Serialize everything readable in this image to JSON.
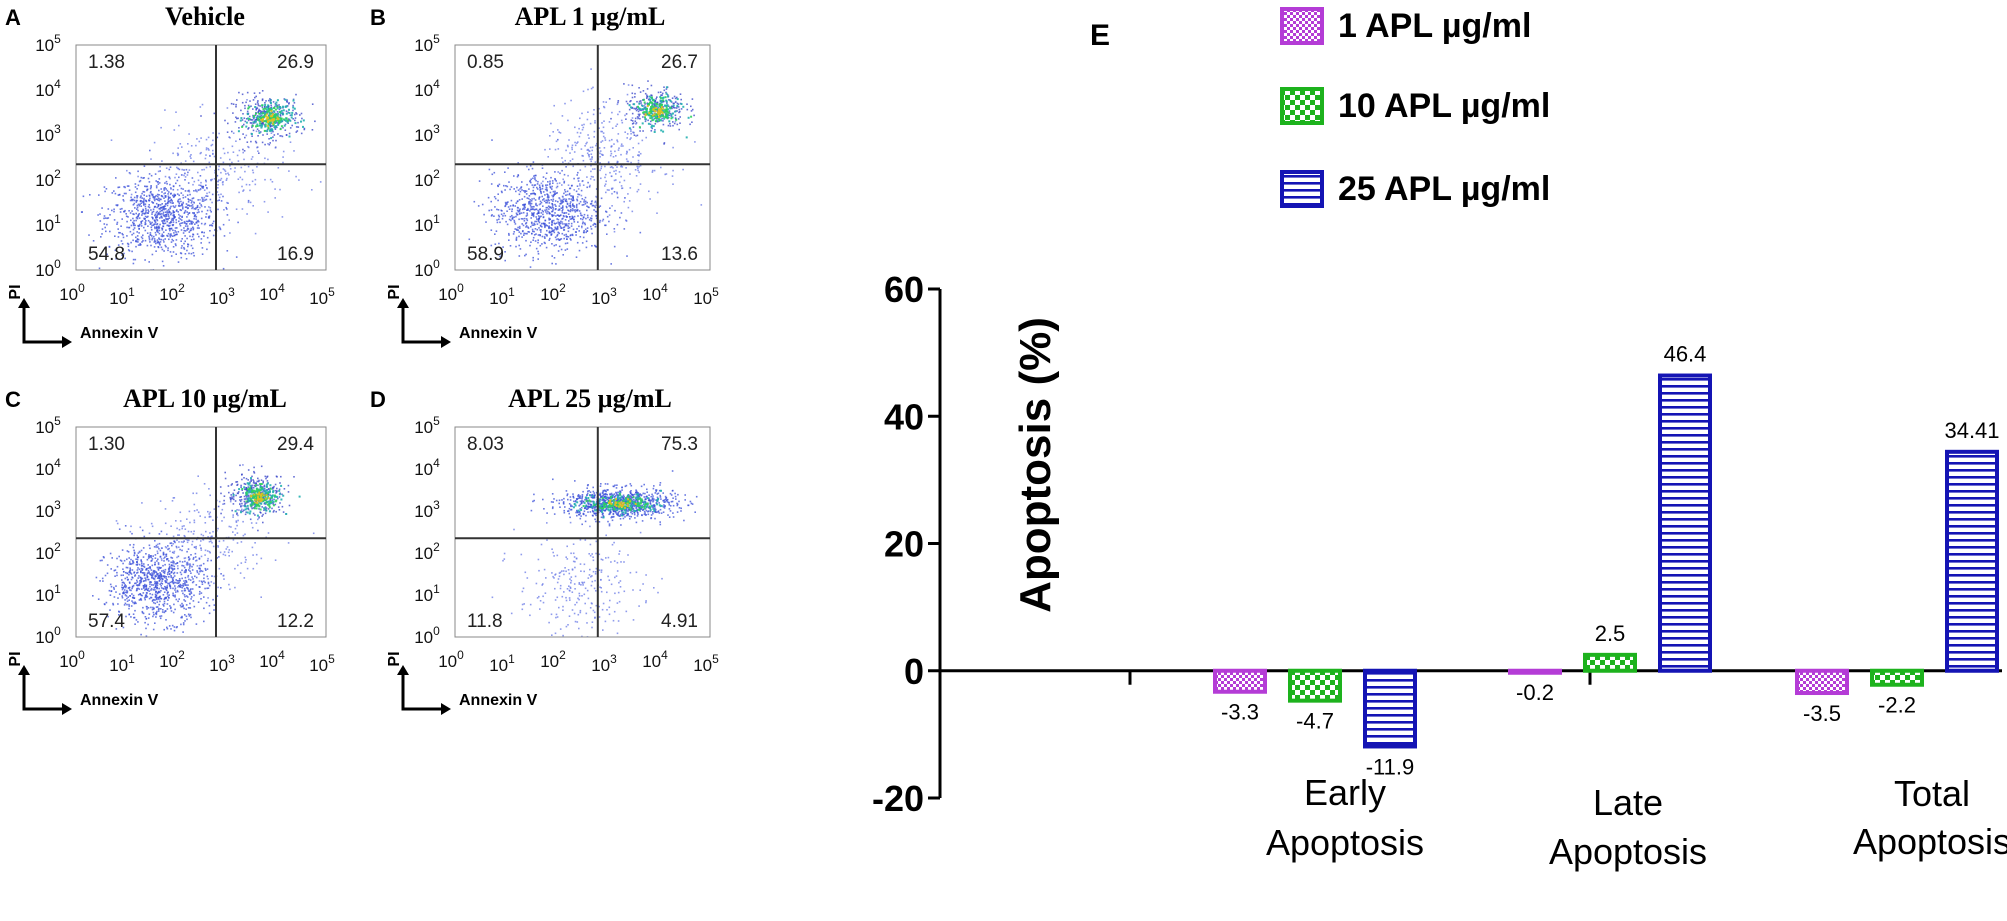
{
  "chart_data": [
    {
      "type": "scatter",
      "panel": "A",
      "title": "Vehicle",
      "xlabel": "Annexin V",
      "ylabel": "PI",
      "xscale": "log",
      "yscale": "log",
      "xlim": [
        1,
        100000
      ],
      "ylim": [
        1,
        100000
      ],
      "quadrants": {
        "upper_left": "1.38",
        "upper_right": "26.9",
        "lower_left": "54.8",
        "lower_right": "16.9"
      }
    },
    {
      "type": "scatter",
      "panel": "B",
      "title": "APL 1 µg/mL",
      "xlabel": "Annexin V",
      "ylabel": "PI",
      "xscale": "log",
      "yscale": "log",
      "xlim": [
        1,
        100000
      ],
      "ylim": [
        1,
        100000
      ],
      "quadrants": {
        "upper_left": "0.85",
        "upper_right": "26.7",
        "lower_left": "58.9",
        "lower_right": "13.6"
      }
    },
    {
      "type": "scatter",
      "panel": "C",
      "title": "APL 10 µg/mL",
      "xlabel": "Annexin V",
      "ylabel": "PI",
      "xscale": "log",
      "yscale": "log",
      "xlim": [
        1,
        100000
      ],
      "ylim": [
        1,
        100000
      ],
      "quadrants": {
        "upper_left": "1.30",
        "upper_right": "29.4",
        "lower_left": "57.4",
        "lower_right": "12.2"
      }
    },
    {
      "type": "scatter",
      "panel": "D",
      "title": "APL 25 µg/mL",
      "xlabel": "Annexin V",
      "ylabel": "PI",
      "xscale": "log",
      "yscale": "log",
      "xlim": [
        1,
        100000
      ],
      "ylim": [
        1,
        100000
      ],
      "quadrants": {
        "upper_left": "8.03",
        "upper_right": "75.3",
        "lower_left": "11.8",
        "lower_right": "4.91"
      }
    },
    {
      "type": "bar",
      "panel": "E",
      "categories": [
        "Early Apoptosis",
        "Late Apoptosis",
        "Total Apoptosis"
      ],
      "category_lines": [
        [
          "Early",
          "Apoptosis"
        ],
        [
          "Late",
          "Apoptosis"
        ],
        [
          "Total",
          "Apoptosis"
        ]
      ],
      "series": [
        {
          "name": "1 APL µg/ml",
          "values": [
            -3.3,
            -0.2,
            -3.5
          ],
          "labels": [
            "-3.3",
            "-0.2",
            "-3.5"
          ],
          "color": "#b43cd6",
          "pattern": "checker-fine"
        },
        {
          "name": "10 APL µg/ml",
          "values": [
            -4.7,
            2.5,
            -2.2
          ],
          "labels": [
            "-4.7",
            "2.5",
            "-2.2"
          ],
          "color": "#1db21d",
          "pattern": "checker-coarse"
        },
        {
          "name": "25 APL µg/ml",
          "values": [
            -11.9,
            46.4,
            34.41
          ],
          "labels": [
            "-11.9",
            "46.4",
            "34.41"
          ],
          "color": "#1414b4",
          "pattern": "horizontal-stripes"
        }
      ],
      "ylabel": "Apoptosis (%)",
      "xlabel": "",
      "ylim": [
        -20,
        60
      ],
      "yticks": [
        -20,
        0,
        20,
        40,
        60
      ],
      "legend_position": "top"
    }
  ]
}
